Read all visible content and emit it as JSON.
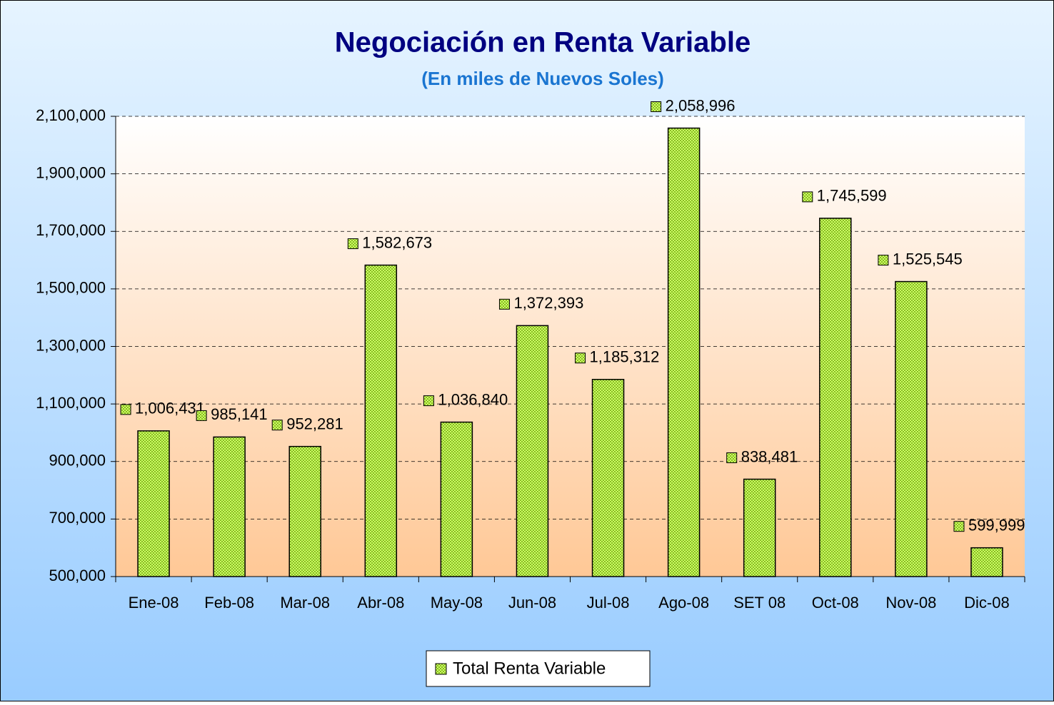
{
  "chart_data": {
    "type": "bar",
    "title": "Negociación en Renta Variable",
    "subtitle": "(En miles de Nuevos Soles)",
    "categories": [
      "Ene-08",
      "Feb-08",
      "Mar-08",
      "Abr-08",
      "May-08",
      "Jun-08",
      "Jul-08",
      "Ago-08",
      "SET 08",
      "Oct-08",
      "Nov-08",
      "Dic-08"
    ],
    "series": [
      {
        "name": "Total Renta Variable",
        "color": "#ccff66",
        "values": [
          1006431,
          985141,
          952281,
          1582673,
          1036840,
          1372393,
          1185312,
          2058996,
          838481,
          1745599,
          1525545,
          599999
        ],
        "value_labels": [
          "1,006,431",
          "985,141",
          "952,281",
          "1,582,673",
          "1,036,840",
          "1,372,393",
          "1,185,312",
          "2,058,996",
          "838,481",
          "1,745,599",
          "1,525,545",
          "599,999"
        ]
      }
    ],
    "ylim": [
      500000,
      2100000
    ],
    "yticks": [
      {
        "value": 500000,
        "label": "500,000"
      },
      {
        "value": 700000,
        "label": "700,000"
      },
      {
        "value": 900000,
        "label": "900,000"
      },
      {
        "value": 1100000,
        "label": "1,100,000"
      },
      {
        "value": 1300000,
        "label": "1,300,000"
      },
      {
        "value": 1500000,
        "label": "1,500,000"
      },
      {
        "value": 1700000,
        "label": "1,700,000"
      },
      {
        "value": 1900000,
        "label": "1,900,000"
      },
      {
        "value": 2100000,
        "label": "2,100,000"
      }
    ],
    "grid": true,
    "legend": "bottom"
  }
}
